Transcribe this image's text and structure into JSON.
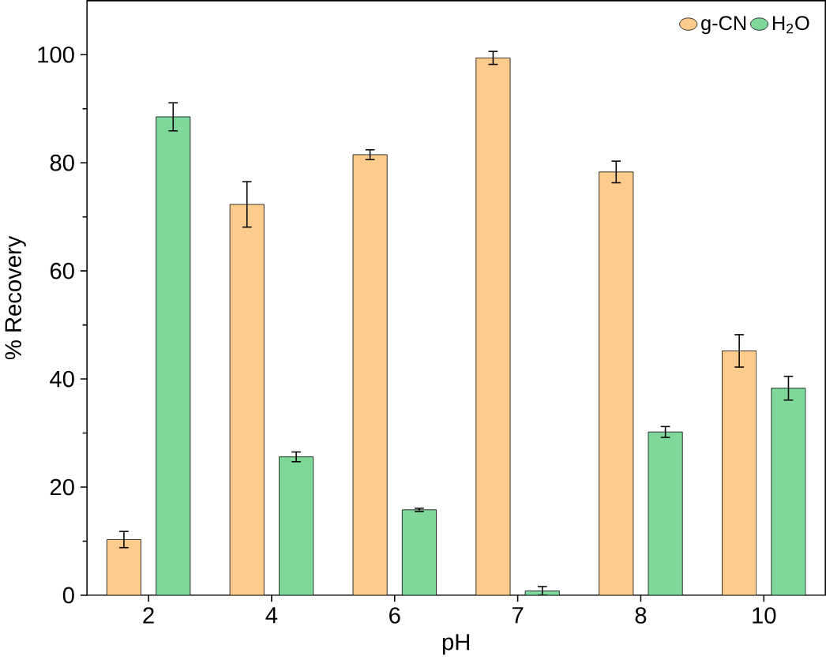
{
  "chart_data": {
    "type": "bar",
    "xlabel": "pH",
    "ylabel": "% Recovery",
    "categories": [
      "2",
      "4",
      "6",
      "7",
      "8",
      "10"
    ],
    "series": [
      {
        "name": "g-CN",
        "color": "#fdcb8c",
        "values": [
          10.3,
          72.3,
          81.5,
          99.4,
          78.3,
          45.2
        ],
        "errors": [
          1.5,
          4.2,
          0.9,
          1.2,
          2.0,
          3.0
        ]
      },
      {
        "name": "H$_{2}$O",
        "color": "#7dd89a",
        "values": [
          88.5,
          25.6,
          15.8,
          0.8,
          30.2,
          38.3
        ],
        "errors": [
          2.6,
          0.9,
          0.3,
          0.8,
          1.0,
          2.2
        ]
      }
    ],
    "ylim": [
      0,
      110
    ],
    "yticks": [
      0,
      20,
      40,
      60,
      80,
      100
    ],
    "legend": "top right"
  }
}
